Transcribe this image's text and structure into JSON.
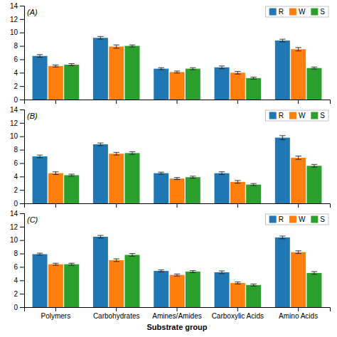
{
  "chart_data": [
    {
      "type": "bar",
      "title": "(A)",
      "categories": [
        "Polymers",
        "Carbohydrates",
        "Amines/Amides",
        "Carboxylic Acids",
        "Amino Acids"
      ],
      "series": [
        {
          "name": "R",
          "values": [
            6.5,
            9.2,
            4.6,
            4.8,
            8.8
          ],
          "errors": [
            0.2,
            0.2,
            0.15,
            0.2,
            0.2
          ]
        },
        {
          "name": "W",
          "values": [
            5.0,
            7.9,
            4.1,
            4.0,
            7.5
          ],
          "errors": [
            0.15,
            0.25,
            0.15,
            0.2,
            0.25
          ]
        },
        {
          "name": "S",
          "values": [
            5.2,
            8.0,
            4.6,
            3.2,
            4.7
          ],
          "errors": [
            0.15,
            0.15,
            0.15,
            0.15,
            0.15
          ]
        }
      ],
      "ylim": [
        0,
        14
      ],
      "yticks": [
        0,
        2,
        4,
        6,
        8,
        10,
        12,
        14
      ],
      "grid": false,
      "legend": "upper right",
      "tick_labels": "y"
    },
    {
      "type": "bar",
      "title": "(B)",
      "categories": [
        "Polymers",
        "Carbohydrates",
        "Amines/Amides",
        "Carboxylic Acids",
        "Amino Acids"
      ],
      "series": [
        {
          "name": "R",
          "values": [
            7.0,
            8.8,
            4.5,
            4.5,
            9.8
          ],
          "errors": [
            0.2,
            0.2,
            0.15,
            0.2,
            0.3
          ]
        },
        {
          "name": "W",
          "values": [
            4.5,
            7.4,
            3.7,
            3.2,
            6.8
          ],
          "errors": [
            0.2,
            0.2,
            0.15,
            0.2,
            0.25
          ]
        },
        {
          "name": "S",
          "values": [
            4.2,
            7.5,
            3.9,
            2.8,
            5.6
          ],
          "errors": [
            0.15,
            0.2,
            0.15,
            0.15,
            0.2
          ]
        }
      ],
      "ylim": [
        0,
        14
      ],
      "yticks": [
        0,
        2,
        4,
        6,
        8,
        10,
        12,
        14
      ],
      "grid": false,
      "legend": "upper right",
      "tick_labels": "y"
    },
    {
      "type": "bar",
      "title": "(C)",
      "xlabel": "Substrate group",
      "categories": [
        "Polymers",
        "Carbohydrates",
        "Amines/Amides",
        "Carboxylic Acids",
        "Amino Acids"
      ],
      "series": [
        {
          "name": "R",
          "values": [
            7.9,
            10.5,
            5.4,
            5.2,
            10.4
          ],
          "errors": [
            0.15,
            0.2,
            0.15,
            0.2,
            0.2
          ]
        },
        {
          "name": "W",
          "values": [
            6.4,
            7.0,
            4.8,
            3.6,
            8.2
          ],
          "errors": [
            0.15,
            0.2,
            0.15,
            0.15,
            0.2
          ]
        },
        {
          "name": "S",
          "values": [
            6.4,
            7.8,
            5.3,
            3.3,
            5.1
          ],
          "errors": [
            0.15,
            0.2,
            0.15,
            0.15,
            0.2
          ]
        }
      ],
      "ylim": [
        0,
        14
      ],
      "yticks": [
        0,
        2,
        4,
        6,
        8,
        10,
        12,
        14
      ],
      "grid": false,
      "legend": "upper right"
    }
  ]
}
